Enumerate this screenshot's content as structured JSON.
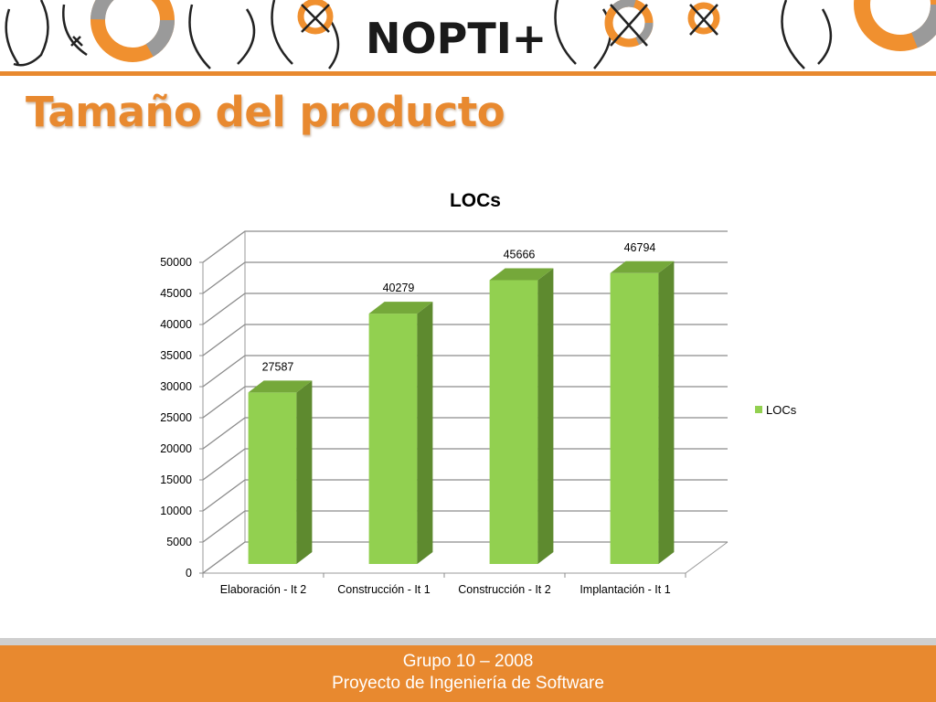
{
  "header": {
    "logo_text": "NOPTI+",
    "title": "Tamaño del producto"
  },
  "footer": {
    "line1": "Grupo 10 – 2008",
    "line2": "Proyecto de Ingeniería de Software"
  },
  "colors": {
    "accent": "#e8892f",
    "bar_front": "#92d050",
    "bar_side": "#5e8a2f",
    "bar_top": "#75a83a"
  },
  "chart_data": {
    "type": "bar",
    "title": "LOCs",
    "categories": [
      "Elaboración - It 2",
      "Construcción - It 1",
      "Construcción - It 2",
      "Implantación - It 1"
    ],
    "series": [
      {
        "name": "LOCs",
        "values": [
          27587,
          40279,
          45666,
          46794
        ]
      }
    ],
    "data_labels": [
      "27587",
      "40279",
      "45666",
      "46794"
    ],
    "yticks": [
      "0",
      "5000",
      "10000",
      "15000",
      "20000",
      "25000",
      "30000",
      "35000",
      "40000",
      "45000",
      "50000"
    ],
    "ylim": [
      0,
      50000
    ],
    "grid": true,
    "legend": "right",
    "style": "3d"
  }
}
